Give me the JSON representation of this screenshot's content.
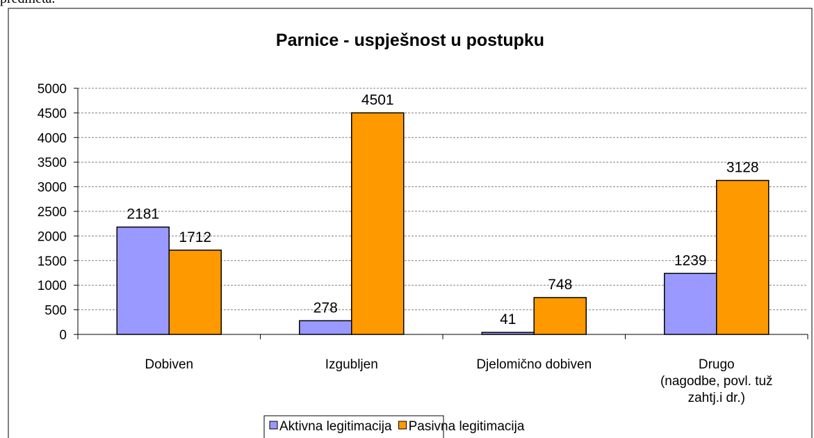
{
  "header_text": "predmeta.",
  "chart_data": {
    "type": "bar",
    "title": "Parnice - uspješnost u postupku",
    "categories": [
      "Dobiven",
      "Izgubljen",
      "Djelomično dobiven",
      "Drugo\n(nagodbe, povl. tuž\nzahtj.i dr.)"
    ],
    "series": [
      {
        "name": "Aktivna legitimacija",
        "color": "#9999ff",
        "values": [
          2181,
          278,
          41,
          1239
        ]
      },
      {
        "name": "Pasivna legitimacija",
        "color": "#ff9900",
        "values": [
          1712,
          4501,
          748,
          3128
        ]
      }
    ],
    "ylim": [
      0,
      5000
    ],
    "yticks": [
      0,
      500,
      1000,
      1500,
      2000,
      2500,
      3000,
      3500,
      4000,
      4500,
      5000
    ],
    "grid": true,
    "legend": "bottom"
  }
}
